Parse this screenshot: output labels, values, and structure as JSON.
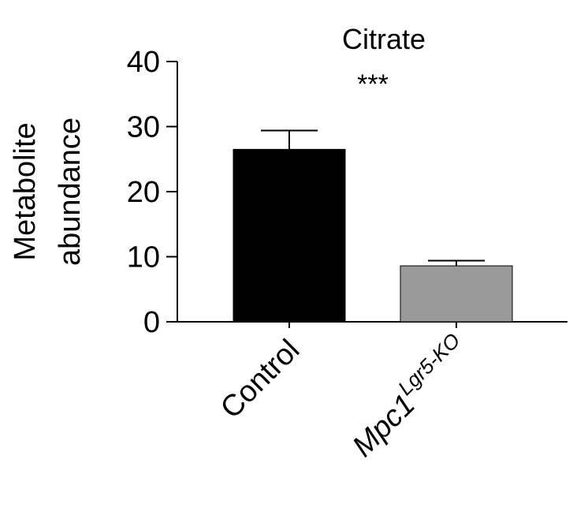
{
  "chart_data": {
    "type": "bar",
    "title": "Citrate",
    "ylabel": [
      "Metabolite",
      "abundance"
    ],
    "xlabel": "",
    "ylim": [
      0,
      40
    ],
    "yticks": [
      0,
      10,
      20,
      30,
      40
    ],
    "categories": [
      "Control",
      "Mpc1"
    ],
    "category_superscripts": [
      "",
      "Lgr5-KO"
    ],
    "values": [
      26.5,
      8.6
    ],
    "errors": [
      2.9,
      0.8
    ],
    "colors": [
      "#000000",
      "#999999"
    ],
    "significance": "***",
    "grid": false,
    "legend": "none"
  }
}
